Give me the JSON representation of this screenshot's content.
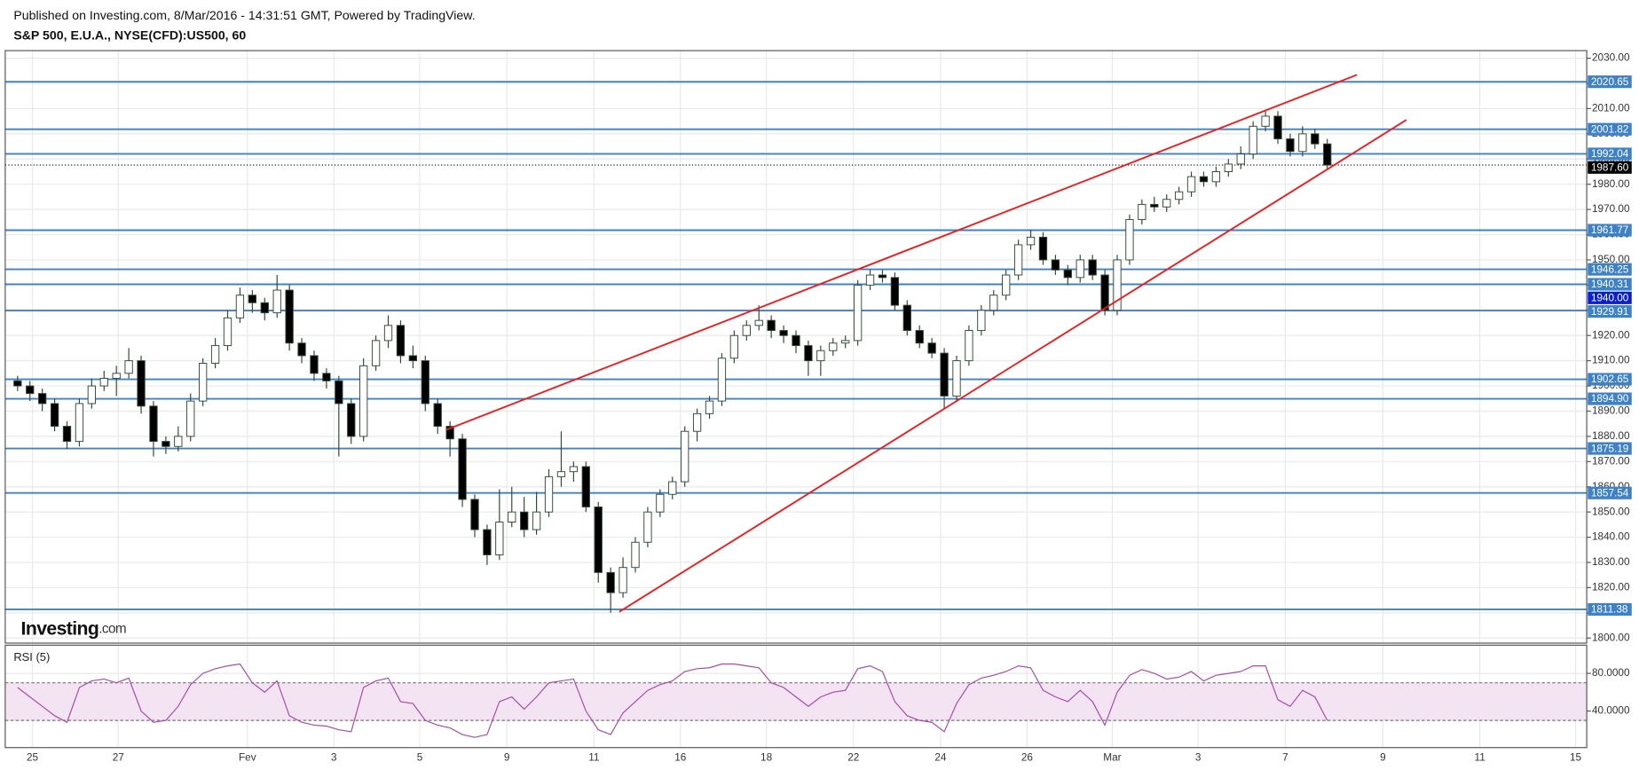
{
  "chart_data": {
    "type": "candlestick",
    "publisher": "Published on Investing.com, 8/Mar/2016 - 14:31:51 GMT, Powered by TradingView.",
    "title": "S&P 500, E.U.A., NYSE(CFD):US500, 60",
    "logo": "Investing",
    "logo_suffix": ".com",
    "up_color": "#ffffff",
    "down_color": "#000000",
    "wick_color": "#2f4a35",
    "grid": true,
    "xlim": [
      0,
      128
    ],
    "xticks": [
      {
        "value": 2.2,
        "label": "25"
      },
      {
        "value": 9.15,
        "label": "27"
      },
      {
        "value": 19.6,
        "label": "Fev"
      },
      {
        "value": 26.6,
        "label": "3"
      },
      {
        "value": 33.55,
        "label": "5"
      },
      {
        "value": 40.6,
        "label": "9"
      },
      {
        "value": 47.65,
        "label": "11"
      },
      {
        "value": 54.65,
        "label": "16"
      },
      {
        "value": 61.6,
        "label": "18"
      },
      {
        "value": 68.65,
        "label": "22"
      },
      {
        "value": 75.7,
        "label": "24"
      },
      {
        "value": 82.7,
        "label": "26"
      },
      {
        "value": 89.6,
        "label": "Mar"
      },
      {
        "value": 96.55,
        "label": "3"
      },
      {
        "value": 103.6,
        "label": "7"
      },
      {
        "value": 111.5,
        "label": "9"
      },
      {
        "value": 119.35,
        "label": "11"
      },
      {
        "value": 127.1,
        "label": "15"
      }
    ],
    "ylim": [
      1798,
      2033
    ],
    "yticks": [
      {
        "value": 1800,
        "label": "1800.00"
      },
      {
        "value": 1810,
        "label": "1810.00"
      },
      {
        "value": 1820,
        "label": "1820.00"
      },
      {
        "value": 1830,
        "label": "1830.00"
      },
      {
        "value": 1840,
        "label": "1840.00"
      },
      {
        "value": 1850,
        "label": "1850.00"
      },
      {
        "value": 1860,
        "label": "1860.00"
      },
      {
        "value": 1870,
        "label": "1870.00"
      },
      {
        "value": 1880,
        "label": "1880.00"
      },
      {
        "value": 1890,
        "label": "1890.00"
      },
      {
        "value": 1900,
        "label": "1900.00"
      },
      {
        "value": 1910,
        "label": "1910.00"
      },
      {
        "value": 1920,
        "label": "1920.00"
      },
      {
        "value": 1930,
        "label": "1930.00"
      },
      {
        "value": 1940,
        "label": "1940.00"
      },
      {
        "value": 1950,
        "label": "1950.00"
      },
      {
        "value": 1960,
        "label": "1960.00"
      },
      {
        "value": 1970,
        "label": "1970.00"
      },
      {
        "value": 1980,
        "label": "1980.00"
      },
      {
        "value": 1990,
        "label": "1990.00"
      },
      {
        "value": 2000,
        "label": "2000.00"
      },
      {
        "value": 2010,
        "label": "2010.00"
      },
      {
        "value": 2020,
        "label": "2020.00"
      },
      {
        "value": 2030,
        "label": "2030.00"
      }
    ],
    "x": [
      1,
      2,
      3,
      4,
      5,
      6,
      7,
      8,
      9,
      10,
      11,
      12,
      13,
      14,
      15,
      16,
      17,
      18,
      19,
      20,
      21,
      22,
      23,
      24,
      25,
      26,
      27,
      28,
      29,
      30,
      31,
      32,
      33,
      34,
      35,
      36,
      37,
      38,
      39,
      40,
      41,
      42,
      43,
      44,
      45,
      46,
      47,
      48,
      49,
      50,
      51,
      52,
      53,
      54,
      55,
      56,
      57,
      58,
      59,
      60,
      61,
      62,
      63,
      64,
      65,
      66,
      67,
      68,
      69,
      70,
      71,
      72,
      73,
      74,
      75,
      76,
      77,
      78,
      79,
      80,
      81,
      82,
      83,
      84,
      85,
      86,
      87,
      88,
      89,
      90,
      91,
      92,
      93,
      94,
      95,
      96,
      97,
      98,
      99,
      100,
      101,
      102,
      103,
      104,
      105,
      106,
      107
    ],
    "candles": [
      [
        1902,
        1904,
        1898,
        1900
      ],
      [
        1900,
        1902,
        1894,
        1897
      ],
      [
        1897,
        1899,
        1890,
        1893
      ],
      [
        1893,
        1895,
        1882,
        1884
      ],
      [
        1884,
        1886,
        1875,
        1878
      ],
      [
        1878,
        1895,
        1876,
        1893
      ],
      [
        1893,
        1903,
        1891,
        1900
      ],
      [
        1900,
        1906,
        1898,
        1903
      ],
      [
        1903,
        1908,
        1896,
        1905
      ],
      [
        1905,
        1915,
        1903,
        1910
      ],
      [
        1910,
        1912,
        1889,
        1892
      ],
      [
        1892,
        1894,
        1872,
        1878
      ],
      [
        1878,
        1880,
        1873,
        1876
      ],
      [
        1876,
        1884,
        1874,
        1880
      ],
      [
        1880,
        1897,
        1878,
        1894
      ],
      [
        1894,
        1911,
        1892,
        1909
      ],
      [
        1909,
        1919,
        1907,
        1916
      ],
      [
        1916,
        1930,
        1914,
        1927
      ],
      [
        1927,
        1939,
        1925,
        1936
      ],
      [
        1936,
        1938,
        1929,
        1933
      ],
      [
        1933,
        1935,
        1926,
        1929
      ],
      [
        1929,
        1944,
        1927,
        1938
      ],
      [
        1938,
        1940,
        1914,
        1917
      ],
      [
        1917,
        1919,
        1909,
        1912
      ],
      [
        1912,
        1914,
        1902,
        1905
      ],
      [
        1905,
        1907,
        1899,
        1902
      ],
      [
        1902,
        1904,
        1872,
        1893
      ],
      [
        1893,
        1895,
        1877,
        1880
      ],
      [
        1880,
        1911,
        1878,
        1908
      ],
      [
        1908,
        1920,
        1906,
        1918
      ],
      [
        1918,
        1928,
        1915,
        1924
      ],
      [
        1924,
        1926,
        1909,
        1912
      ],
      [
        1912,
        1916,
        1907,
        1910
      ],
      [
        1910,
        1912,
        1890,
        1893
      ],
      [
        1893,
        1895,
        1881,
        1884
      ],
      [
        1884,
        1886,
        1872,
        1879
      ],
      [
        1879,
        1881,
        1852,
        1855
      ],
      [
        1855,
        1857,
        1840,
        1843
      ],
      [
        1843,
        1845,
        1829,
        1833
      ],
      [
        1833,
        1859,
        1831,
        1846
      ],
      [
        1846,
        1860,
        1844,
        1850
      ],
      [
        1850,
        1856,
        1840,
        1843
      ],
      [
        1843,
        1858,
        1841,
        1850
      ],
      [
        1850,
        1867,
        1848,
        1864
      ],
      [
        1864,
        1882,
        1860,
        1866
      ],
      [
        1866,
        1870,
        1862,
        1868
      ],
      [
        1868,
        1870,
        1850,
        1852
      ],
      [
        1852,
        1854,
        1822,
        1826
      ],
      [
        1826,
        1828,
        1810,
        1818
      ],
      [
        1818,
        1832,
        1816,
        1828
      ],
      [
        1828,
        1840,
        1826,
        1838
      ],
      [
        1838,
        1852,
        1836,
        1850
      ],
      [
        1850,
        1859,
        1848,
        1857
      ],
      [
        1857,
        1864,
        1855,
        1862
      ],
      [
        1862,
        1884,
        1860,
        1882
      ],
      [
        1882,
        1891,
        1878,
        1889
      ],
      [
        1889,
        1896,
        1887,
        1894
      ],
      [
        1894,
        1913,
        1892,
        1911
      ],
      [
        1911,
        1922,
        1909,
        1920
      ],
      [
        1920,
        1926,
        1918,
        1924
      ],
      [
        1924,
        1932,
        1922,
        1926
      ],
      [
        1926,
        1928,
        1919,
        1922
      ],
      [
        1922,
        1924,
        1917,
        1920
      ],
      [
        1920,
        1922,
        1913,
        1916
      ],
      [
        1916,
        1918,
        1904,
        1910
      ],
      [
        1910,
        1916,
        1904,
        1914
      ],
      [
        1914,
        1919,
        1912,
        1917
      ],
      [
        1917,
        1920,
        1915,
        1918
      ],
      [
        1918,
        1942,
        1916,
        1940
      ],
      [
        1940,
        1946,
        1938,
        1944
      ],
      [
        1944,
        1946,
        1941,
        1943
      ],
      [
        1943,
        1945,
        1930,
        1932
      ],
      [
        1932,
        1934,
        1920,
        1922
      ],
      [
        1922,
        1924,
        1915,
        1917
      ],
      [
        1917,
        1919,
        1911,
        1913
      ],
      [
        1913,
        1915,
        1891,
        1896
      ],
      [
        1896,
        1912,
        1894,
        1910
      ],
      [
        1910,
        1924,
        1908,
        1922
      ],
      [
        1922,
        1932,
        1920,
        1930
      ],
      [
        1930,
        1938,
        1928,
        1936
      ],
      [
        1936,
        1946,
        1934,
        1944
      ],
      [
        1944,
        1958,
        1942,
        1956
      ],
      [
        1956,
        1962,
        1954,
        1959
      ],
      [
        1959,
        1961,
        1948,
        1950
      ],
      [
        1950,
        1952,
        1944,
        1946
      ],
      [
        1946,
        1948,
        1940,
        1943
      ],
      [
        1943,
        1952,
        1941,
        1950
      ],
      [
        1950,
        1952,
        1942,
        1944
      ],
      [
        1944,
        1946,
        1928,
        1930
      ],
      [
        1930,
        1952,
        1928,
        1950
      ],
      [
        1950,
        1968,
        1948,
        1966
      ],
      [
        1966,
        1974,
        1964,
        1972
      ],
      [
        1972,
        1975,
        1969,
        1971
      ],
      [
        1971,
        1976,
        1969,
        1974
      ],
      [
        1974,
        1979,
        1972,
        1977
      ],
      [
        1977,
        1985,
        1975,
        1983
      ],
      [
        1983,
        1985,
        1979,
        1981
      ],
      [
        1981,
        1987,
        1979,
        1985
      ],
      [
        1985,
        1990,
        1983,
        1988
      ],
      [
        1988,
        1995,
        1986,
        1992
      ],
      [
        1992,
        2005,
        1990,
        2003
      ],
      [
        2003,
        2009,
        2001,
        2007
      ],
      [
        2007,
        2009,
        1996,
        1998
      ],
      [
        1998,
        2000,
        1991,
        1993
      ],
      [
        1993,
        2003,
        1991,
        2000
      ],
      [
        2000,
        2002,
        1994,
        1996
      ],
      [
        1996,
        1998,
        1986,
        1987.6
      ]
    ],
    "level_color": "#3d82c8",
    "levels": [
      {
        "value": 2020.65,
        "label": "2020.65"
      },
      {
        "value": 2001.82,
        "label": "2001.82"
      },
      {
        "value": 1992.04,
        "label": "1992.04"
      },
      {
        "value": 1961.77,
        "label": "1961.77"
      },
      {
        "value": 1946.25,
        "label": "1946.25"
      },
      {
        "value": 1940.31,
        "label": "1940.31"
      },
      {
        "value": 1929.91,
        "label": "1929.91"
      },
      {
        "value": 1902.65,
        "label": "1902.65"
      },
      {
        "value": 1894.9,
        "label": "1894.90"
      },
      {
        "value": 1875.19,
        "label": "1875.19"
      },
      {
        "value": 1857.54,
        "label": "1857.54"
      },
      {
        "value": 1811.38,
        "label": "1811.38"
      }
    ],
    "alert": {
      "value": 1940,
      "label": "1940.00",
      "color": "#0a1fd0"
    },
    "last_price": {
      "value": 1987.6,
      "label": "1987.60",
      "color": "#000000"
    },
    "trend_color": "#ee1c1c",
    "trendlines": [
      {
        "x": [
          35.7,
          109.4
        ],
        "y": [
          1882.6,
          2023.4
        ]
      },
      {
        "x": [
          49.7,
          113.4
        ],
        "y": [
          1810.4,
          2005.5
        ]
      }
    ],
    "rsi": {
      "label": "RSI (5)",
      "color": "#a64ca6",
      "band_color": "#f3e3f3",
      "ylim": [
        0,
        100
      ],
      "bands": [
        30,
        70
      ],
      "yticks": [
        {
          "value": 40,
          "label": "40.0000"
        },
        {
          "value": 80,
          "label": "80.0000"
        }
      ],
      "values": [
        65,
        55,
        45,
        35,
        28,
        65,
        72,
        74,
        70,
        75,
        40,
        28,
        30,
        45,
        68,
        80,
        85,
        88,
        90,
        70,
        60,
        72,
        35,
        28,
        25,
        24,
        20,
        18,
        65,
        72,
        75,
        50,
        48,
        30,
        25,
        22,
        15,
        12,
        15,
        50,
        55,
        42,
        55,
        70,
        72,
        74,
        40,
        20,
        15,
        38,
        50,
        62,
        68,
        72,
        82,
        85,
        86,
        90,
        90,
        88,
        86,
        70,
        65,
        55,
        45,
        55,
        60,
        62,
        85,
        88,
        82,
        50,
        35,
        30,
        28,
        18,
        48,
        68,
        75,
        78,
        82,
        88,
        86,
        62,
        55,
        50,
        62,
        50,
        25,
        60,
        78,
        84,
        80,
        74,
        76,
        82,
        72,
        78,
        80,
        82,
        88,
        88,
        52,
        45,
        62,
        55,
        30
      ]
    }
  }
}
